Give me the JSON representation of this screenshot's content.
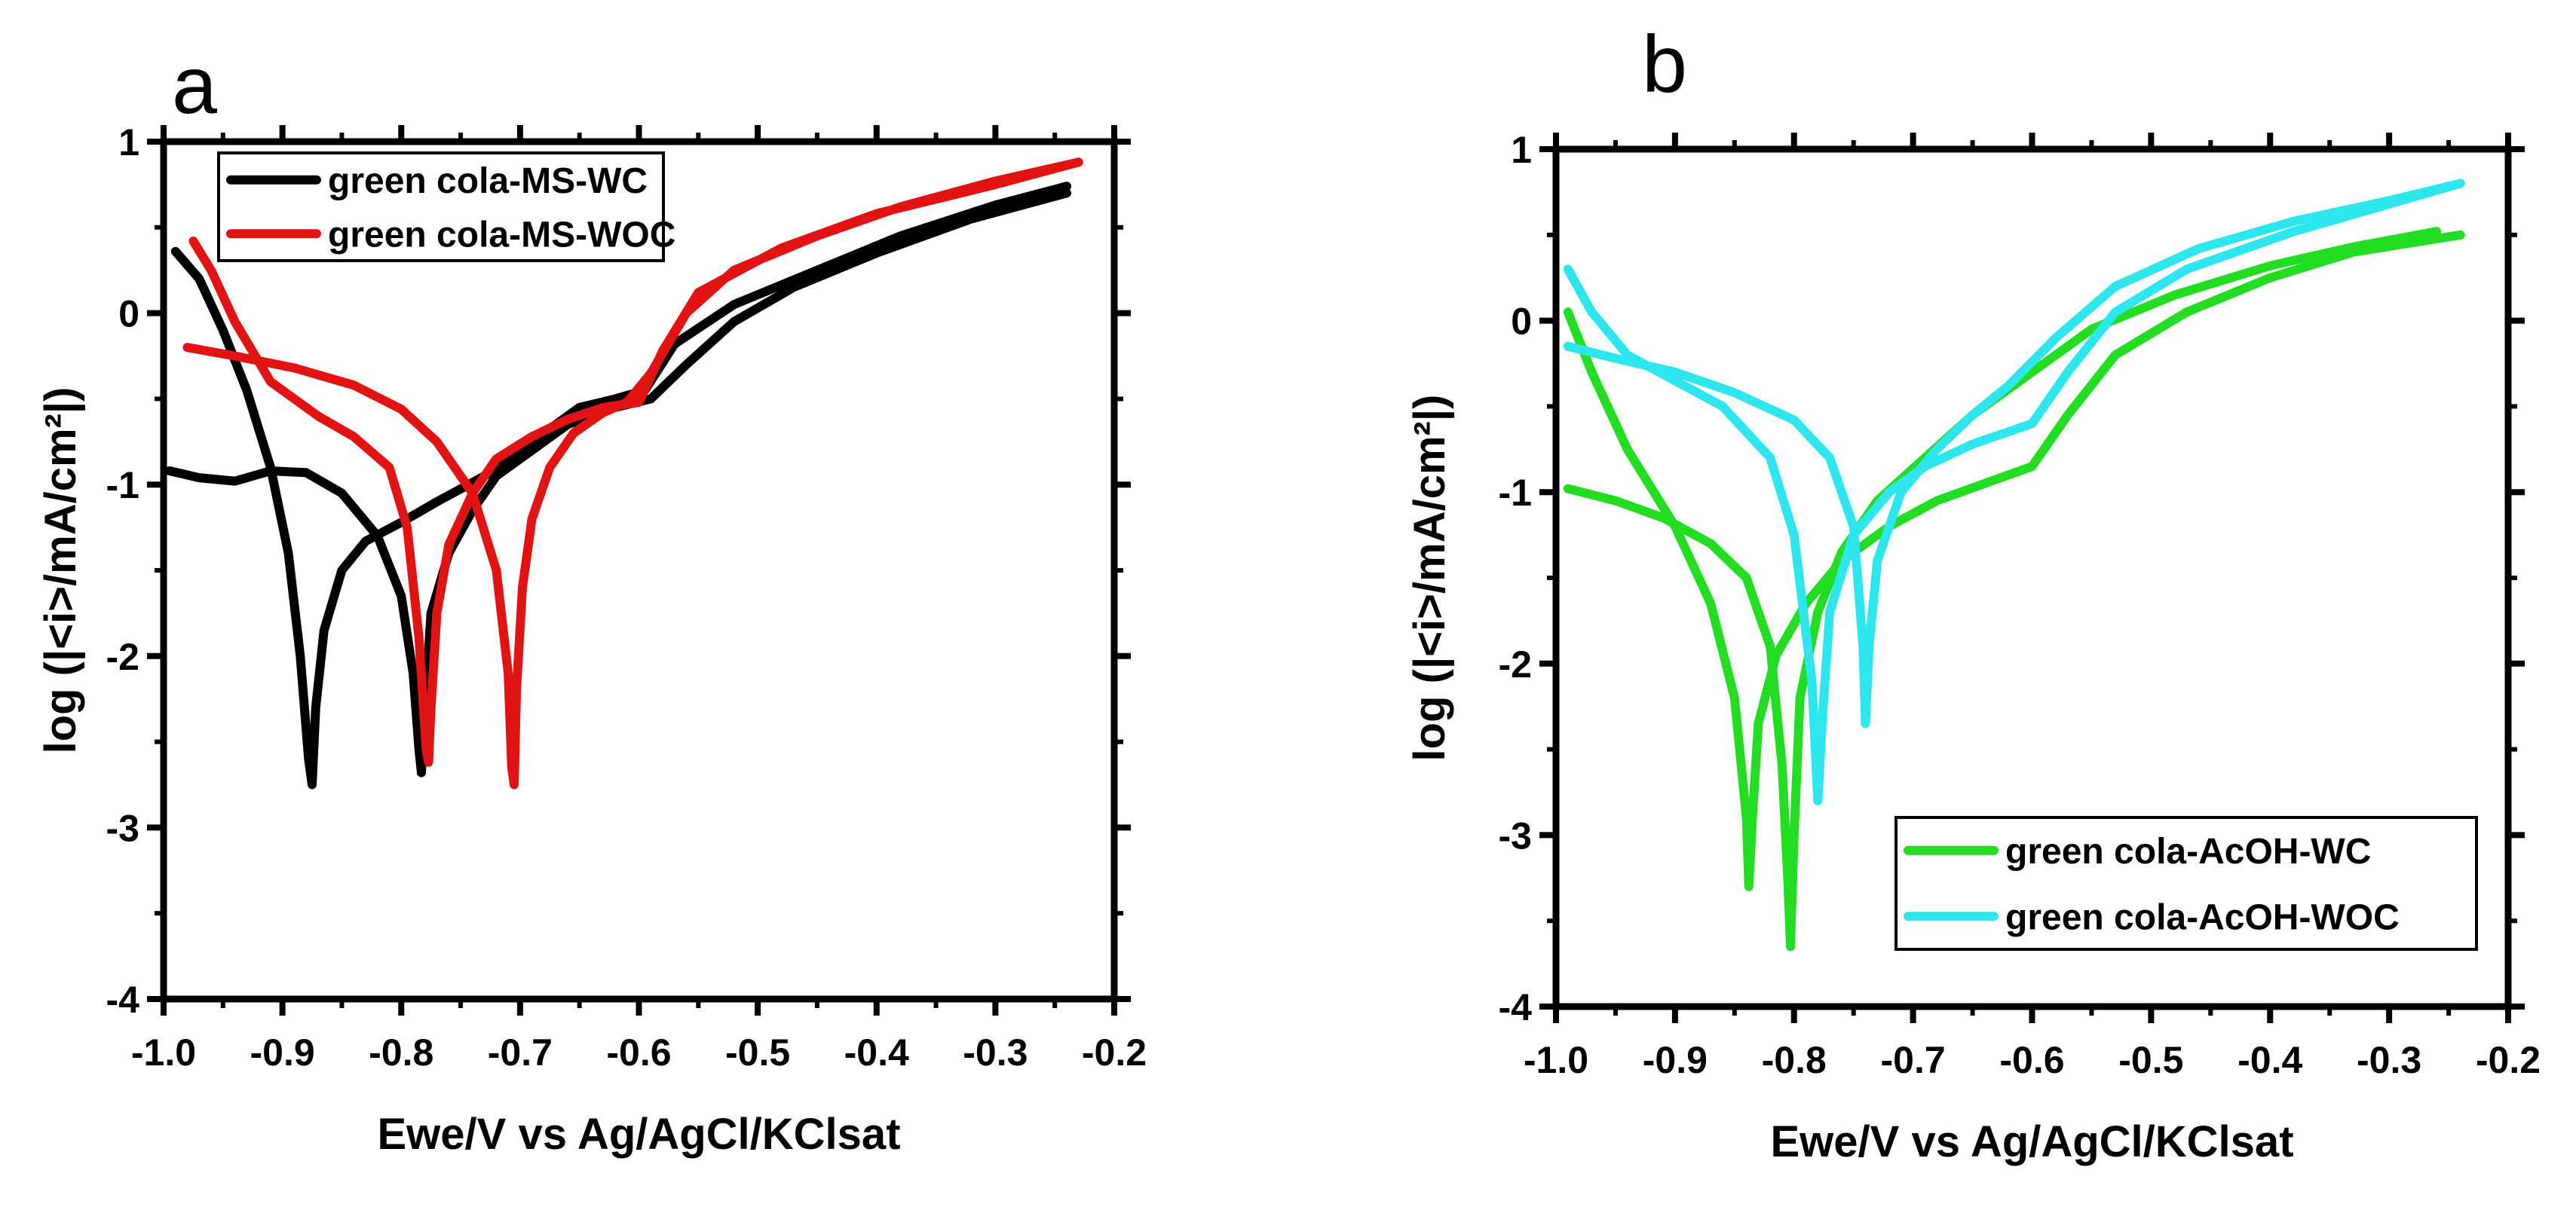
{
  "chart_data": [
    {
      "type": "line",
      "panel_label": "a",
      "xlabel": "Ewe/V vs Ag/AgCl/KClsat",
      "ylabel": "log (|<i>/mA/cm²|)",
      "xlim": [
        -1.0,
        -0.2
      ],
      "ylim": [
        -4,
        1
      ],
      "xticks": [
        "-1.0",
        "-0.9",
        "-0.8",
        "-0.7",
        "-0.6",
        "-0.5",
        "-0.4",
        "-0.3",
        "-0.2"
      ],
      "yticks": [
        "1",
        "0",
        "-1",
        "-2",
        "-3",
        "-4"
      ],
      "legend_position": "top-left",
      "series": [
        {
          "name": "green cola-MS-WC",
          "color": "#000000",
          "points": [
            [
              -0.99,
              0.36
            ],
            [
              -0.97,
              0.2
            ],
            [
              -0.95,
              -0.1
            ],
            [
              -0.93,
              -0.45
            ],
            [
              -0.91,
              -0.9
            ],
            [
              -0.895,
              -1.4
            ],
            [
              -0.885,
              -2.0
            ],
            [
              -0.878,
              -2.6
            ],
            [
              -0.875,
              -2.75
            ],
            [
              -0.872,
              -2.3
            ],
            [
              -0.865,
              -1.85
            ],
            [
              -0.85,
              -1.5
            ],
            [
              -0.83,
              -1.33
            ],
            [
              -0.8,
              -1.22
            ],
            [
              -0.77,
              -1.1
            ],
            [
              -0.73,
              -0.95
            ],
            [
              -0.69,
              -0.75
            ],
            [
              -0.65,
              -0.55
            ],
            [
              -0.62,
              -0.5
            ],
            [
              -0.595,
              -0.45
            ],
            [
              -0.57,
              -0.18
            ],
            [
              -0.52,
              0.05
            ],
            [
              -0.45,
              0.25
            ],
            [
              -0.38,
              0.45
            ],
            [
              -0.3,
              0.63
            ],
            [
              -0.24,
              0.74
            ]
          ]
        },
        {
          "name": "green cola-MS-WC",
          "color": "#000000",
          "points": [
            [
              -0.995,
              -0.92
            ],
            [
              -0.97,
              -0.96
            ],
            [
              -0.94,
              -0.98
            ],
            [
              -0.91,
              -0.92
            ],
            [
              -0.88,
              -0.93
            ],
            [
              -0.85,
              -1.05
            ],
            [
              -0.82,
              -1.3
            ],
            [
              -0.8,
              -1.65
            ],
            [
              -0.79,
              -2.1
            ],
            [
              -0.785,
              -2.55
            ],
            [
              -0.783,
              -2.68
            ],
            [
              -0.78,
              -2.3
            ],
            [
              -0.775,
              -1.75
            ],
            [
              -0.76,
              -1.4
            ],
            [
              -0.74,
              -1.15
            ],
            [
              -0.72,
              -0.95
            ],
            [
              -0.69,
              -0.8
            ],
            [
              -0.66,
              -0.65
            ],
            [
              -0.62,
              -0.55
            ],
            [
              -0.59,
              -0.5
            ],
            [
              -0.56,
              -0.3
            ],
            [
              -0.52,
              -0.05
            ],
            [
              -0.47,
              0.15
            ],
            [
              -0.4,
              0.35
            ],
            [
              -0.32,
              0.55
            ],
            [
              -0.24,
              0.7
            ]
          ]
        },
        {
          "name": "green cola-MS-WOC",
          "color": "#e11313",
          "points": [
            [
              -0.975,
              0.42
            ],
            [
              -0.96,
              0.25
            ],
            [
              -0.94,
              -0.05
            ],
            [
              -0.91,
              -0.4
            ],
            [
              -0.87,
              -0.6
            ],
            [
              -0.84,
              -0.72
            ],
            [
              -0.81,
              -0.9
            ],
            [
              -0.795,
              -1.25
            ],
            [
              -0.785,
              -1.9
            ],
            [
              -0.779,
              -2.55
            ],
            [
              -0.777,
              -2.62
            ],
            [
              -0.775,
              -2.3
            ],
            [
              -0.77,
              -1.75
            ],
            [
              -0.76,
              -1.35
            ],
            [
              -0.74,
              -1.05
            ],
            [
              -0.72,
              -0.85
            ],
            [
              -0.69,
              -0.72
            ],
            [
              -0.66,
              -0.62
            ],
            [
              -0.63,
              -0.55
            ],
            [
              -0.6,
              -0.52
            ],
            [
              -0.58,
              -0.22
            ],
            [
              -0.55,
              0.12
            ],
            [
              -0.48,
              0.38
            ],
            [
              -0.4,
              0.58
            ],
            [
              -0.3,
              0.75
            ],
            [
              -0.23,
              0.88
            ]
          ]
        },
        {
          "name": "green cola-MS-WOC",
          "color": "#e11313",
          "points": [
            [
              -0.98,
              -0.2
            ],
            [
              -0.94,
              -0.25
            ],
            [
              -0.89,
              -0.32
            ],
            [
              -0.84,
              -0.42
            ],
            [
              -0.8,
              -0.56
            ],
            [
              -0.77,
              -0.75
            ],
            [
              -0.74,
              -1.05
            ],
            [
              -0.72,
              -1.5
            ],
            [
              -0.71,
              -2.1
            ],
            [
              -0.707,
              -2.65
            ],
            [
              -0.705,
              -2.75
            ],
            [
              -0.703,
              -2.2
            ],
            [
              -0.698,
              -1.6
            ],
            [
              -0.69,
              -1.2
            ],
            [
              -0.675,
              -0.9
            ],
            [
              -0.655,
              -0.7
            ],
            [
              -0.63,
              -0.58
            ],
            [
              -0.61,
              -0.52
            ],
            [
              -0.59,
              -0.35
            ],
            [
              -0.56,
              0.0
            ],
            [
              -0.52,
              0.25
            ],
            [
              -0.45,
              0.45
            ],
            [
              -0.38,
              0.62
            ],
            [
              -0.3,
              0.77
            ],
            [
              -0.23,
              0.88
            ]
          ]
        }
      ]
    },
    {
      "type": "line",
      "panel_label": "b",
      "xlabel": "Ewe/V vs Ag/AgCl/KClsat",
      "ylabel": "log (|<i>/mA/cm²|)",
      "xlim": [
        -1.0,
        -0.2
      ],
      "ylim": [
        -4,
        1
      ],
      "xticks": [
        "-1.0",
        "-0.9",
        "-0.8",
        "-0.7",
        "-0.6",
        "-0.5",
        "-0.4",
        "-0.3",
        "-0.2"
      ],
      "yticks": [
        "1",
        "0",
        "-1",
        "-2",
        "-3",
        "-4"
      ],
      "legend_position": "bottom-right",
      "series": [
        {
          "name": "green cola-AcOH-WC",
          "color": "#22dd22",
          "points": [
            [
              -0.99,
              0.05
            ],
            [
              -0.97,
              -0.3
            ],
            [
              -0.94,
              -0.75
            ],
            [
              -0.9,
              -1.2
            ],
            [
              -0.87,
              -1.65
            ],
            [
              -0.85,
              -2.2
            ],
            [
              -0.84,
              -2.9
            ],
            [
              -0.838,
              -3.3
            ],
            [
              -0.835,
              -2.9
            ],
            [
              -0.83,
              -2.35
            ],
            [
              -0.815,
              -1.95
            ],
            [
              -0.79,
              -1.65
            ],
            [
              -0.76,
              -1.4
            ],
            [
              -0.72,
              -1.2
            ],
            [
              -0.68,
              -1.05
            ],
            [
              -0.64,
              -0.95
            ],
            [
              -0.6,
              -0.85
            ],
            [
              -0.57,
              -0.55
            ],
            [
              -0.53,
              -0.2
            ],
            [
              -0.47,
              0.05
            ],
            [
              -0.4,
              0.25
            ],
            [
              -0.33,
              0.4
            ],
            [
              -0.24,
              0.5
            ]
          ]
        },
        {
          "name": "green cola-AcOH-WC",
          "color": "#22dd22",
          "points": [
            [
              -0.99,
              -0.98
            ],
            [
              -0.95,
              -1.05
            ],
            [
              -0.91,
              -1.15
            ],
            [
              -0.87,
              -1.3
            ],
            [
              -0.84,
              -1.5
            ],
            [
              -0.82,
              -1.9
            ],
            [
              -0.81,
              -2.6
            ],
            [
              -0.805,
              -3.3
            ],
            [
              -0.803,
              -3.65
            ],
            [
              -0.8,
              -3.0
            ],
            [
              -0.795,
              -2.2
            ],
            [
              -0.78,
              -1.7
            ],
            [
              -0.76,
              -1.35
            ],
            [
              -0.73,
              -1.05
            ],
            [
              -0.69,
              -0.8
            ],
            [
              -0.65,
              -0.55
            ],
            [
              -0.6,
              -0.3
            ],
            [
              -0.55,
              -0.05
            ],
            [
              -0.48,
              0.15
            ],
            [
              -0.4,
              0.32
            ],
            [
              -0.33,
              0.43
            ],
            [
              -0.26,
              0.52
            ]
          ]
        },
        {
          "name": "green cola-AcOH-WOC",
          "color": "#2ee6ee",
          "points": [
            [
              -0.99,
              0.3
            ],
            [
              -0.97,
              0.05
            ],
            [
              -0.94,
              -0.2
            ],
            [
              -0.9,
              -0.35
            ],
            [
              -0.86,
              -0.5
            ],
            [
              -0.82,
              -0.8
            ],
            [
              -0.8,
              -1.25
            ],
            [
              -0.785,
              -2.1
            ],
            [
              -0.78,
              -2.8
            ],
            [
              -0.776,
              -2.3
            ],
            [
              -0.77,
              -1.7
            ],
            [
              -0.75,
              -1.25
            ],
            [
              -0.72,
              -1.0
            ],
            [
              -0.69,
              -0.85
            ],
            [
              -0.65,
              -0.72
            ],
            [
              -0.6,
              -0.6
            ],
            [
              -0.57,
              -0.3
            ],
            [
              -0.53,
              0.05
            ],
            [
              -0.47,
              0.3
            ],
            [
              -0.38,
              0.52
            ],
            [
              -0.3,
              0.68
            ],
            [
              -0.24,
              0.8
            ]
          ]
        },
        {
          "name": "green cola-AcOH-WOC",
          "color": "#2ee6ee",
          "points": [
            [
              -0.99,
              -0.15
            ],
            [
              -0.95,
              -0.22
            ],
            [
              -0.9,
              -0.3
            ],
            [
              -0.85,
              -0.42
            ],
            [
              -0.8,
              -0.58
            ],
            [
              -0.77,
              -0.8
            ],
            [
              -0.75,
              -1.2
            ],
            [
              -0.742,
              -1.9
            ],
            [
              -0.74,
              -2.35
            ],
            [
              -0.737,
              -1.9
            ],
            [
              -0.73,
              -1.4
            ],
            [
              -0.71,
              -1.0
            ],
            [
              -0.68,
              -0.75
            ],
            [
              -0.65,
              -0.55
            ],
            [
              -0.62,
              -0.38
            ],
            [
              -0.58,
              -0.1
            ],
            [
              -0.53,
              0.2
            ],
            [
              -0.46,
              0.42
            ],
            [
              -0.38,
              0.58
            ],
            [
              -0.3,
              0.7
            ],
            [
              -0.24,
              0.8
            ]
          ]
        }
      ]
    }
  ]
}
